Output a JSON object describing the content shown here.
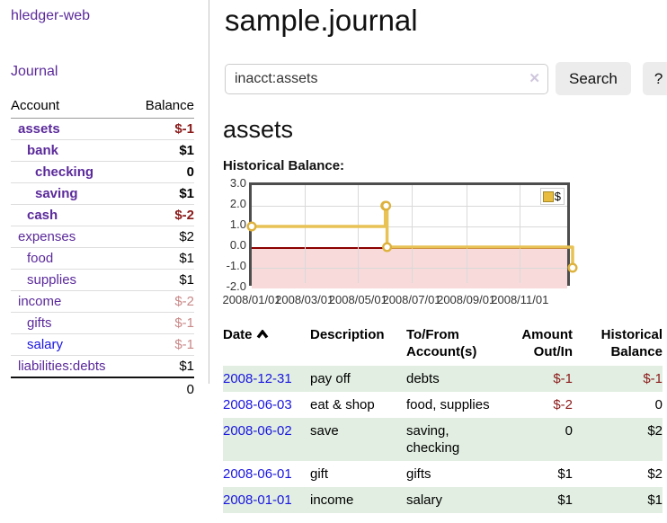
{
  "sidebar": {
    "brand": "hledger-web",
    "nav": [
      {
        "label": "Journal"
      }
    ],
    "accounts_table": {
      "headers": {
        "account": "Account",
        "balance": "Balance"
      },
      "rows": [
        {
          "name": "assets",
          "depth": 1,
          "bold": true,
          "link": "visited",
          "balance": "$-1",
          "tone": "negative"
        },
        {
          "name": "bank",
          "depth": 2,
          "bold": true,
          "link": "visited",
          "balance": "$1",
          "tone": "normal"
        },
        {
          "name": "checking",
          "depth": 3,
          "bold": true,
          "link": "visited",
          "balance": "0",
          "tone": "normal"
        },
        {
          "name": "saving",
          "depth": 3,
          "bold": true,
          "link": "visited",
          "balance": "$1",
          "tone": "normal"
        },
        {
          "name": "cash",
          "depth": 2,
          "bold": true,
          "link": "visited",
          "balance": "$-2",
          "tone": "negative"
        },
        {
          "name": "expenses",
          "depth": 1,
          "bold": false,
          "link": "visited",
          "balance": "$2",
          "tone": "normal"
        },
        {
          "name": "food",
          "depth": 2,
          "bold": false,
          "link": "visited",
          "balance": "$1",
          "tone": "normal"
        },
        {
          "name": "supplies",
          "depth": 2,
          "bold": false,
          "link": "visited",
          "balance": "$1",
          "tone": "normal"
        },
        {
          "name": "income",
          "depth": 1,
          "bold": false,
          "link": "visited",
          "balance": "$-2",
          "tone": "negative-dim"
        },
        {
          "name": "gifts",
          "depth": 2,
          "bold": false,
          "link": "visited",
          "balance": "$-1",
          "tone": "negative-dim"
        },
        {
          "name": "salary",
          "depth": 2,
          "bold": false,
          "link": "unvisited",
          "balance": "$-1",
          "tone": "negative-dim"
        },
        {
          "name": "liabilities:debts",
          "depth": 1,
          "bold": false,
          "link": "visited",
          "balance": "$1",
          "tone": "normal"
        }
      ],
      "total": "0"
    }
  },
  "main": {
    "title": "sample.journal",
    "search": {
      "value": "inacct:assets",
      "clear_icon": "✕",
      "button": "Search",
      "help_button": "?"
    },
    "account_heading": "assets",
    "chart_heading": "Historical Balance:",
    "register": {
      "headers": [
        "Date",
        "Description",
        "To/From Account(s)",
        "Amount Out/In",
        "Historical Balance"
      ],
      "sort": {
        "column": "Date",
        "direction": "ascending"
      },
      "rows": [
        {
          "date": "2008-12-31",
          "description": "pay off",
          "accounts": "debts",
          "amount": "$-1",
          "balance": "$-1"
        },
        {
          "date": "2008-06-03",
          "description": "eat & shop",
          "accounts": "food, supplies",
          "amount": "$-2",
          "balance": "0"
        },
        {
          "date": "2008-06-02",
          "description": "save",
          "accounts": "saving,\nchecking",
          "amount": "0",
          "balance": "$2"
        },
        {
          "date": "2008-06-01",
          "description": "gift",
          "accounts": "gifts",
          "amount": "$1",
          "balance": "$2"
        },
        {
          "date": "2008-01-01",
          "description": "income",
          "accounts": "salary",
          "amount": "$1",
          "balance": "$1"
        }
      ]
    }
  },
  "chart_data": {
    "type": "line",
    "title": "Historical Balance:",
    "x_range": [
      "2008-01-01",
      "2008-12-31"
    ],
    "y_range": [
      -2,
      3
    ],
    "y_ticks": [
      {
        "label": "3.0",
        "value": 3
      },
      {
        "label": "2.0",
        "value": 2
      },
      {
        "label": "1.0",
        "value": 1
      },
      {
        "label": "0.0",
        "value": 0
      },
      {
        "label": "-1.0",
        "value": -1
      },
      {
        "label": "-2.0",
        "value": -2
      }
    ],
    "x_ticks": [
      {
        "label": "2008/01/01",
        "date": "2008-01-01"
      },
      {
        "label": "2008/03/01",
        "date": "2008-03-01"
      },
      {
        "label": "2008/05/01",
        "date": "2008-05-01"
      },
      {
        "label": "2008/07/01",
        "date": "2008-07-01"
      },
      {
        "label": "2008/09/01",
        "date": "2008-09-01"
      },
      {
        "label": "2008/11/01",
        "date": "2008-11-01"
      }
    ],
    "legend": [
      {
        "label": "$",
        "color": "#e8bc3f",
        "position": "top-right"
      }
    ],
    "series": [
      {
        "name": "$",
        "color": "#e8c255",
        "marker_color": "#ddb13c",
        "step": "after",
        "points": [
          [
            "2008-01-01",
            1
          ],
          [
            "2008-06-01",
            2
          ],
          [
            "2008-06-02",
            2
          ],
          [
            "2008-06-03",
            0
          ],
          [
            "2008-12-31",
            -1
          ]
        ]
      }
    ],
    "zero_line_color": "#8b0000",
    "negative_region_color": "#f9dada",
    "grid": true
  },
  "colors": {
    "link_visited": "#5b2a9b",
    "link_unvisited": "#1a16e0",
    "negative": "#8b1a1a",
    "negative_dim": "#c98888",
    "row_highlight_green": "#e1eee1",
    "button_bg": "#ececec"
  }
}
